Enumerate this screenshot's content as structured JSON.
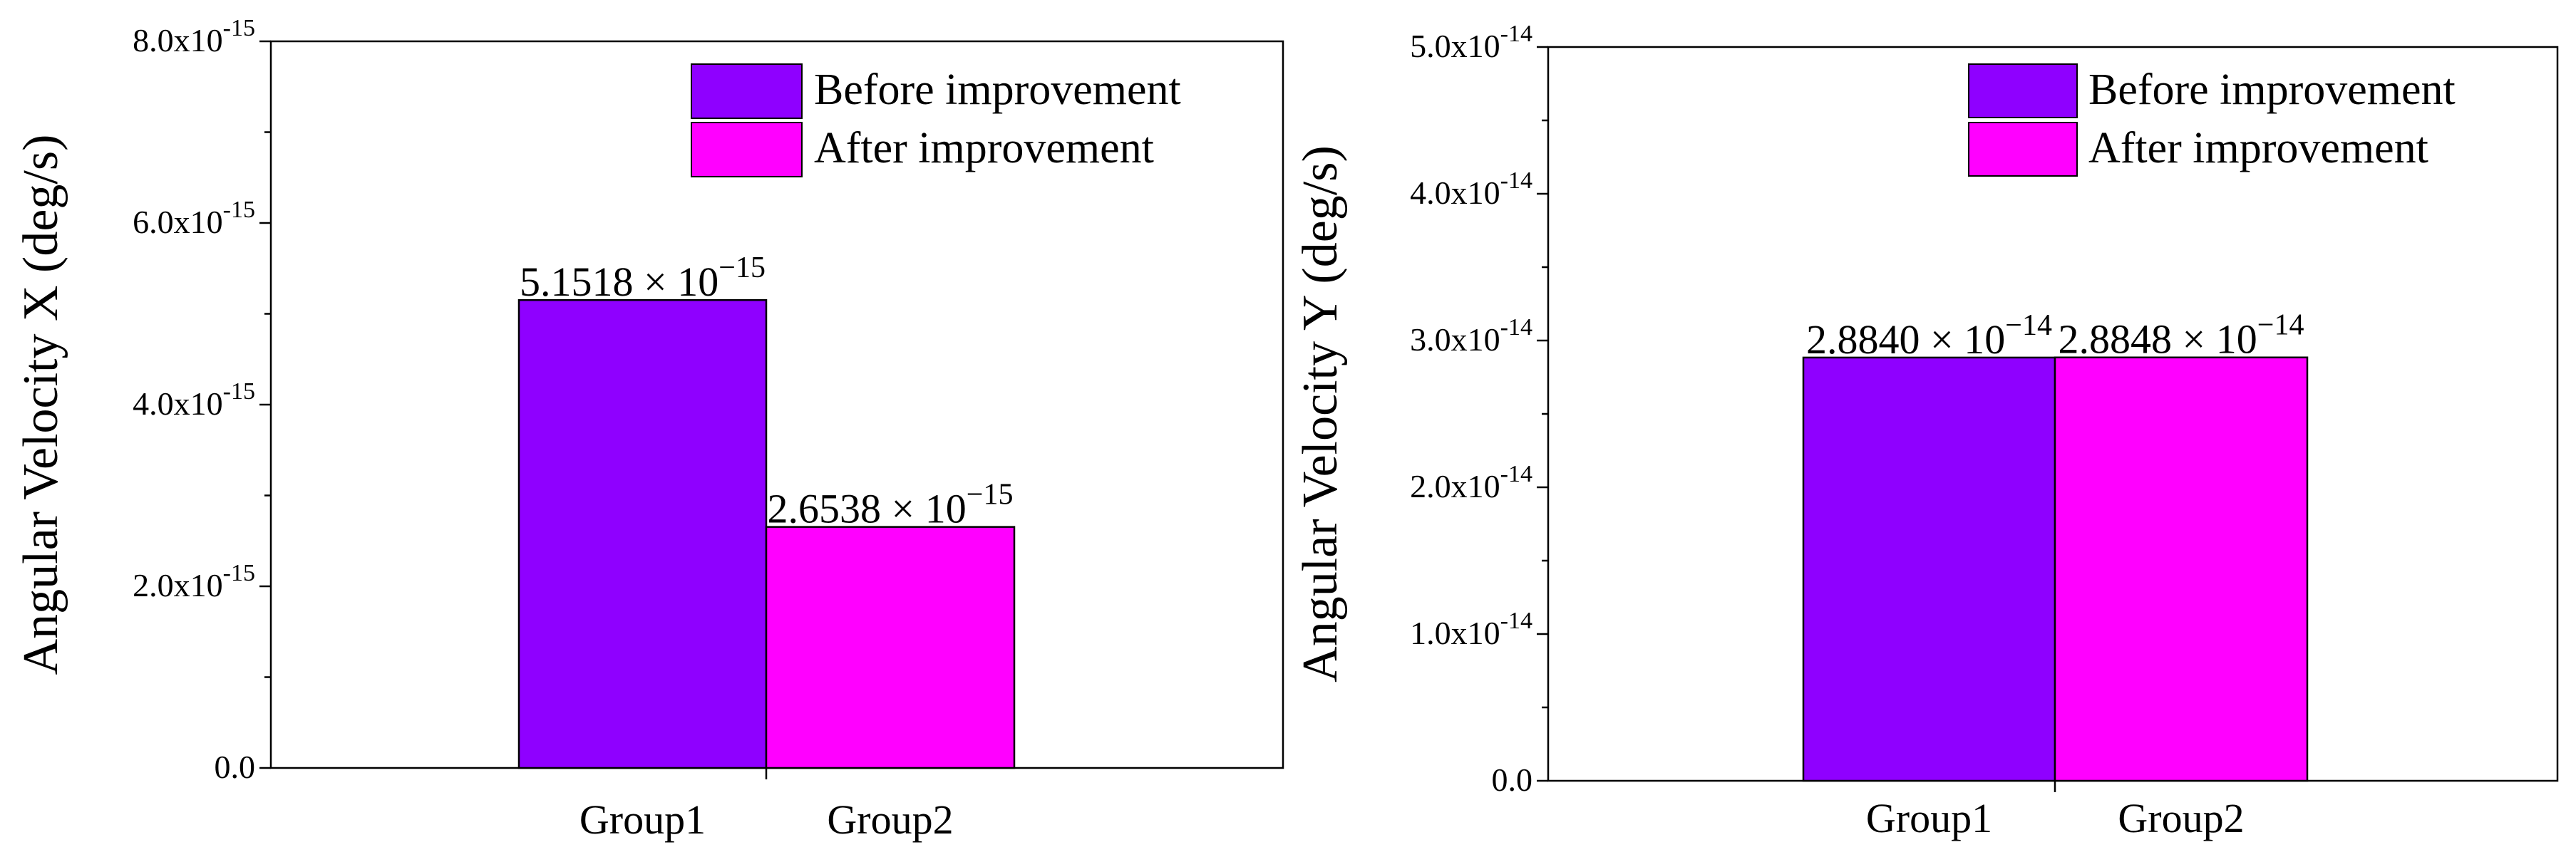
{
  "colors": {
    "before": "#8F00FF",
    "after": "#FF00FF",
    "axis": "#000000",
    "background": "#FFFFFF"
  },
  "chart_data": [
    {
      "type": "bar",
      "title": "",
      "xlabel": "",
      "ylabel": "Angular Velocity X (deg/s)",
      "ylim": [
        0,
        8e-15
      ],
      "yticks": [
        {
          "value": 0.0,
          "mantissa": "0.0",
          "exponent": ""
        },
        {
          "value": 2e-15,
          "mantissa": "2.0x10",
          "exponent": "-15"
        },
        {
          "value": 4e-15,
          "mantissa": "4.0x10",
          "exponent": "-15"
        },
        {
          "value": 6e-15,
          "mantissa": "6.0x10",
          "exponent": "-15"
        },
        {
          "value": 8e-15,
          "mantissa": "8.0x10",
          "exponent": "-15"
        }
      ],
      "categories": [
        "Group1",
        "Group2"
      ],
      "series": [
        {
          "name": "Before improvement",
          "category": "Group1",
          "value": 5.1518e-15,
          "label_mantissa": "5.1518 × 10",
          "label_exponent": "−15"
        },
        {
          "name": "After improvement",
          "category": "Group2",
          "value": 2.6538e-15,
          "label_mantissa": "2.6538 × 10",
          "label_exponent": "−15"
        }
      ],
      "legend": [
        "Before improvement",
        "After improvement"
      ],
      "legend_position": "top-right"
    },
    {
      "type": "bar",
      "title": "",
      "xlabel": "",
      "ylabel": "Angular Velocity Y (deg/s)",
      "ylim": [
        0,
        5e-14
      ],
      "yticks": [
        {
          "value": 0.0,
          "mantissa": "0.0",
          "exponent": ""
        },
        {
          "value": 1e-14,
          "mantissa": "1.0x10",
          "exponent": "-14"
        },
        {
          "value": 2e-14,
          "mantissa": "2.0x10",
          "exponent": "-14"
        },
        {
          "value": 3e-14,
          "mantissa": "3.0x10",
          "exponent": "-14"
        },
        {
          "value": 4e-14,
          "mantissa": "4.0x10",
          "exponent": "-14"
        },
        {
          "value": 5e-14,
          "mantissa": "5.0x10",
          "exponent": "-14"
        }
      ],
      "categories": [
        "Group1",
        "Group2"
      ],
      "series": [
        {
          "name": "Before improvement",
          "category": "Group1",
          "value": 2.884e-14,
          "label_mantissa": "2.8840 × 10",
          "label_exponent": "−14"
        },
        {
          "name": "After improvement",
          "category": "Group2",
          "value": 2.8848e-14,
          "label_mantissa": "2.8848 × 10",
          "label_exponent": "−14"
        }
      ],
      "legend": [
        "Before improvement",
        "After improvement"
      ],
      "legend_position": "top-right"
    }
  ]
}
